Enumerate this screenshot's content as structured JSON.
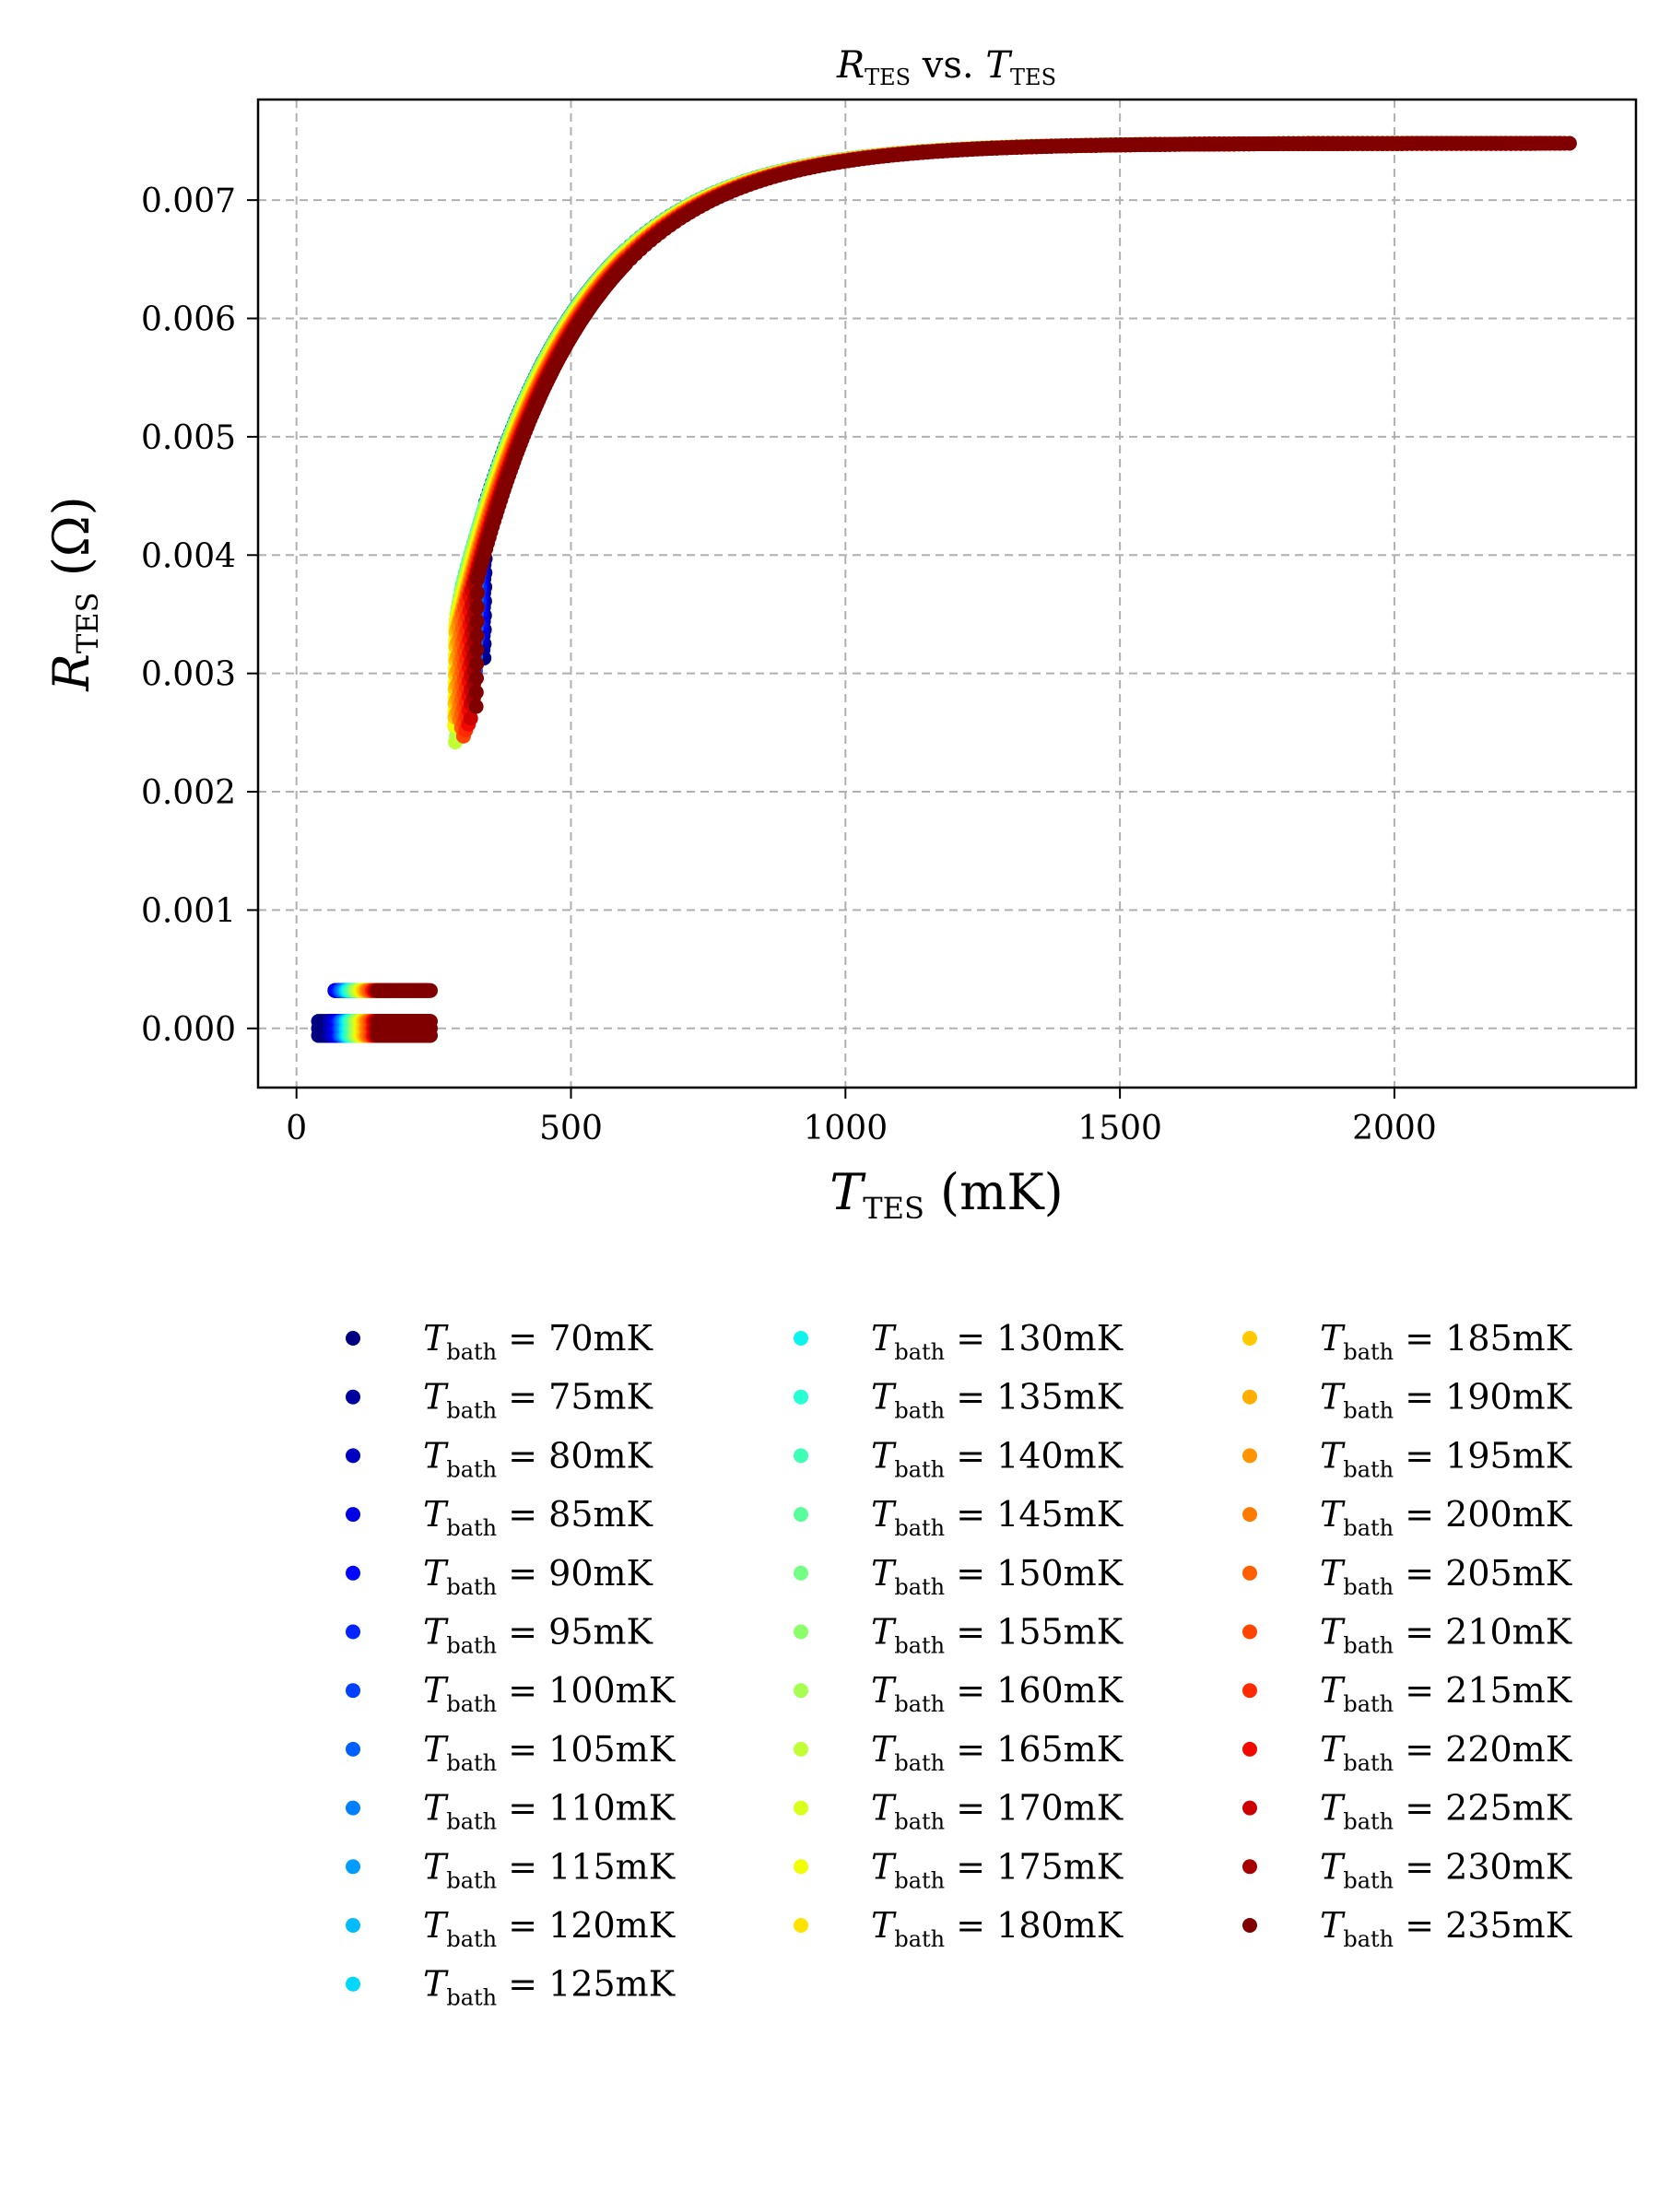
{
  "chart_data": {
    "type": "scatter",
    "title": {
      "symbol": "R",
      "subscript": "TES",
      "middle": " vs. ",
      "symbol2": "T",
      "subscript2": "TES"
    },
    "xlabel": {
      "symbol": "T",
      "subscript": "TES",
      "unit": " (mK)"
    },
    "ylabel": {
      "symbol": "R",
      "subscript": "TES",
      "unit": " (Ω)"
    },
    "xlim": [
      -70,
      2440
    ],
    "ylim": [
      -0.0005,
      0.00785
    ],
    "xticks": [
      0,
      500,
      1000,
      1500,
      2000
    ],
    "xtick_labels": [
      "0",
      "500",
      "1000",
      "1500",
      "2000"
    ],
    "yticks": [
      0.0,
      0.001,
      0.002,
      0.003,
      0.004,
      0.005,
      0.006,
      0.007
    ],
    "ytick_labels": [
      "0.000",
      "0.001",
      "0.002",
      "0.003",
      "0.004",
      "0.005",
      "0.006",
      "0.007"
    ],
    "grid": true,
    "legend_placement": "below-plot, 3 columns",
    "legend_symbol": "T",
    "legend_subscript": "bath",
    "series": [
      {
        "name": "70mK",
        "t_bath": 70,
        "color": "#000080",
        "superconducting_x": [
          40,
          130
        ],
        "transition_start": [
          345,
          0.00445
        ],
        "transition_end_r": 0.00305
      },
      {
        "name": "75mK",
        "t_bath": 75,
        "color": "#00009f",
        "superconducting_x": [
          60,
          130
        ],
        "transition_start": [
          343,
          0.0044
        ],
        "transition_end_r": 0.0031
      },
      {
        "name": "80mK",
        "t_bath": 80,
        "color": "#0000c1",
        "superconducting_x": [
          65,
          135
        ],
        "transition_start": [
          341,
          0.00435
        ],
        "transition_end_r": 0.0032
      },
      {
        "name": "85mK",
        "t_bath": 85,
        "color": "#0000e3",
        "superconducting_x": [
          70,
          140
        ],
        "transition_start": [
          339,
          0.0043
        ],
        "transition_end_r": 0.0033
      },
      {
        "name": "90mK",
        "t_bath": 90,
        "color": "#0008ff",
        "superconducting_x": [
          75,
          145
        ],
        "transition_start": [
          337,
          0.00425
        ],
        "transition_end_r": 0.0034
      },
      {
        "name": "95mK",
        "t_bath": 95,
        "color": "#0024ff",
        "superconducting_x": [
          78,
          150
        ],
        "transition_start": [
          335,
          0.0042
        ],
        "transition_end_r": 0.0035
      },
      {
        "name": "100mK",
        "t_bath": 100,
        "color": "#0040ff",
        "superconducting_x": [
          80,
          155
        ],
        "transition_start": [
          332,
          0.00415
        ],
        "transition_end_r": 0.0033
      },
      {
        "name": "105mK",
        "t_bath": 105,
        "color": "#0060ff",
        "superconducting_x": [
          82,
          160
        ],
        "transition_start": [
          329,
          0.0041
        ],
        "transition_end_r": 0.003
      },
      {
        "name": "110mK",
        "t_bath": 110,
        "color": "#0080ff",
        "superconducting_x": [
          85,
          165
        ],
        "transition_start": [
          325,
          0.00405
        ],
        "transition_end_r": 0.00285
      },
      {
        "name": "115mK",
        "t_bath": 115,
        "color": "#009cff",
        "superconducting_x": [
          88,
          170
        ],
        "transition_start": [
          321,
          0.004
        ],
        "transition_end_r": 0.0027
      },
      {
        "name": "120mK",
        "t_bath": 120,
        "color": "#00bcff",
        "superconducting_x": [
          90,
          175
        ],
        "transition_start": [
          317,
          0.00395
        ],
        "transition_end_r": 0.0026
      },
      {
        "name": "125mK",
        "t_bath": 125,
        "color": "#00d8ff",
        "superconducting_x": [
          92,
          180
        ],
        "transition_start": [
          313,
          0.0039
        ],
        "transition_end_r": 0.00252
      },
      {
        "name": "130mK",
        "t_bath": 130,
        "color": "#0cf4eb",
        "superconducting_x": [
          95,
          185
        ],
        "transition_start": [
          309,
          0.00385
        ],
        "transition_end_r": 0.0029
      },
      {
        "name": "135mK",
        "t_bath": 135,
        "color": "#25ffd1",
        "superconducting_x": [
          98,
          190
        ],
        "transition_start": [
          305,
          0.0038
        ],
        "transition_end_r": 0.003
      },
      {
        "name": "140mK",
        "t_bath": 140,
        "color": "#3fffb7",
        "superconducting_x": [
          100,
          195
        ],
        "transition_start": [
          302,
          0.00375
        ],
        "transition_end_r": 0.0031
      },
      {
        "name": "145mK",
        "t_bath": 145,
        "color": "#59ff9d",
        "superconducting_x": [
          103,
          200
        ],
        "transition_start": [
          300,
          0.0037
        ],
        "transition_end_r": 0.0029
      },
      {
        "name": "150mK",
        "t_bath": 150,
        "color": "#73ff83",
        "superconducting_x": [
          106,
          205
        ],
        "transition_start": [
          298,
          0.00365
        ],
        "transition_end_r": 0.0027
      },
      {
        "name": "155mK",
        "t_bath": 155,
        "color": "#8cff6a",
        "superconducting_x": [
          108,
          210
        ],
        "transition_start": [
          296,
          0.0036
        ],
        "transition_end_r": 0.00255
      },
      {
        "name": "160mK",
        "t_bath": 160,
        "color": "#a6ff50",
        "superconducting_x": [
          110,
          215
        ],
        "transition_start": [
          294,
          0.00355
        ],
        "transition_end_r": 0.0024
      },
      {
        "name": "165mK",
        "t_bath": 165,
        "color": "#c0ff36",
        "superconducting_x": [
          113,
          220
        ],
        "transition_start": [
          292,
          0.0035
        ],
        "transition_end_r": 0.00235
      },
      {
        "name": "170mK",
        "t_bath": 170,
        "color": "#daff1d",
        "superconducting_x": [
          116,
          222
        ],
        "transition_start": [
          291,
          0.00345
        ],
        "transition_end_r": 0.0025
      },
      {
        "name": "175mK",
        "t_bath": 175,
        "color": "#f1fc06",
        "superconducting_x": [
          118,
          225
        ],
        "transition_start": [
          290,
          0.0034
        ],
        "transition_end_r": 0.00255
      },
      {
        "name": "180mK",
        "t_bath": 180,
        "color": "#ffe200",
        "superconducting_x": [
          120,
          228
        ],
        "transition_start": [
          290,
          0.00335
        ],
        "transition_end_r": 0.0026
      },
      {
        "name": "185mK",
        "t_bath": 185,
        "color": "#ffc800",
        "superconducting_x": [
          123,
          230
        ],
        "transition_start": [
          291,
          0.00335
        ],
        "transition_end_r": 0.00262
      },
      {
        "name": "190mK",
        "t_bath": 190,
        "color": "#ffae00",
        "superconducting_x": [
          126,
          232
        ],
        "transition_start": [
          293,
          0.00338
        ],
        "transition_end_r": 0.00265
      },
      {
        "name": "195mK",
        "t_bath": 195,
        "color": "#ff9400",
        "superconducting_x": [
          128,
          234
        ],
        "transition_start": [
          296,
          0.0034
        ],
        "transition_end_r": 0.00262
      },
      {
        "name": "200mK",
        "t_bath": 200,
        "color": "#ff7a00",
        "superconducting_x": [
          130,
          236
        ],
        "transition_start": [
          299,
          0.00345
        ],
        "transition_end_r": 0.00255
      },
      {
        "name": "205mK",
        "t_bath": 205,
        "color": "#ff5f00",
        "superconducting_x": [
          133,
          238
        ],
        "transition_start": [
          303,
          0.0035
        ],
        "transition_end_r": 0.00248
      },
      {
        "name": "210mK",
        "t_bath": 210,
        "color": "#ff4500",
        "superconducting_x": [
          136,
          239
        ],
        "transition_start": [
          307,
          0.00355
        ],
        "transition_end_r": 0.00245
      },
      {
        "name": "215mK",
        "t_bath": 215,
        "color": "#ff2b00",
        "superconducting_x": [
          138,
          240
        ],
        "transition_start": [
          311,
          0.0036
        ],
        "transition_end_r": 0.0025
      },
      {
        "name": "220mK",
        "t_bath": 220,
        "color": "#f10800",
        "superconducting_x": [
          140,
          241
        ],
        "transition_start": [
          316,
          0.00365
        ],
        "transition_end_r": 0.00255
      },
      {
        "name": "225mK",
        "t_bath": 225,
        "color": "#cc0000",
        "superconducting_x": [
          143,
          242
        ],
        "transition_start": [
          320,
          0.0037
        ],
        "transition_end_r": 0.00262
      },
      {
        "name": "230mK",
        "t_bath": 230,
        "color": "#a60000",
        "superconducting_x": [
          146,
          243
        ],
        "transition_start": [
          325,
          0.00375
        ],
        "transition_end_r": 0.00268
      },
      {
        "name": "235mK",
        "t_bath": 235,
        "color": "#800000",
        "superconducting_x": [
          148,
          244
        ],
        "transition_start": [
          330,
          0.0038
        ],
        "transition_end_r": 0.0027
      }
    ],
    "normal_state_r": 0.00748,
    "max_t_tes": 2320
  }
}
